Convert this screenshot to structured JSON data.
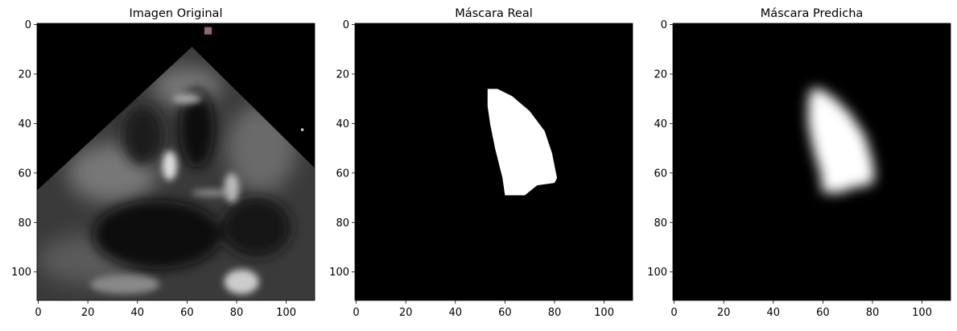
{
  "chart_data": [
    {
      "type": "image",
      "title": "Imagen Original",
      "xlim": [
        -0.5,
        111.5
      ],
      "ylim": [
        111.5,
        -0.5
      ],
      "xticks": [
        0,
        20,
        40,
        60,
        80,
        100
      ],
      "yticks": [
        0,
        20,
        40,
        60,
        80,
        100
      ]
    },
    {
      "type": "image",
      "title": "Máscara Real",
      "xlim": [
        -0.5,
        111.5
      ],
      "ylim": [
        111.5,
        -0.5
      ],
      "xticks": [
        0,
        20,
        40,
        60,
        80,
        100
      ],
      "yticks": [
        0,
        20,
        40,
        60,
        80,
        100
      ]
    },
    {
      "type": "image",
      "title": "Máscara Predicha",
      "xlim": [
        -0.5,
        111.5
      ],
      "ylim": [
        111.5,
        -0.5
      ],
      "xticks": [
        0,
        20,
        40,
        60,
        80,
        100
      ],
      "yticks": [
        0,
        20,
        40,
        60,
        80,
        100
      ]
    }
  ]
}
